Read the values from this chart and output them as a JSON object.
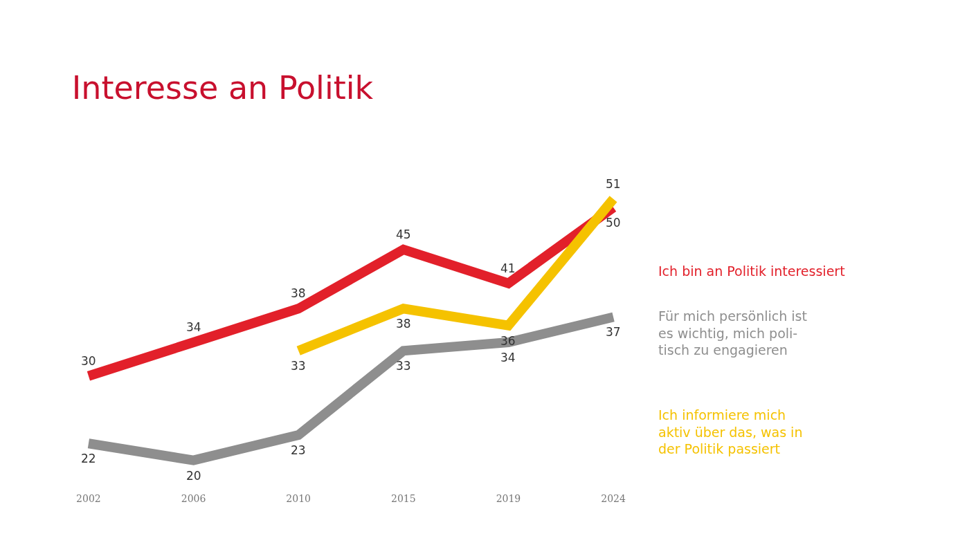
{
  "chart_data": {
    "type": "line",
    "title": "Interesse an Politik",
    "categories": [
      "2002",
      "2006",
      "2010",
      "2015",
      "2019",
      "2024"
    ],
    "series": [
      {
        "name": "Ich bin an Politik interessiert",
        "color": "#e2202a",
        "values": [
          30,
          34,
          38,
          45,
          41,
          50
        ]
      },
      {
        "name": "Für mich persönlich ist\nes wichtig, mich poli-\ntisch zu engagieren",
        "color": "#8e8e8e",
        "values": [
          22,
          20,
          23,
          33,
          34,
          37
        ]
      },
      {
        "name": "Ich informiere mich\naktiv über das, was in\nder Politik passiert",
        "color": "#f5c200",
        "values": [
          null,
          null,
          33,
          38,
          36,
          51
        ]
      }
    ],
    "data_labels": true,
    "legend": "right",
    "marker": "none",
    "line_style": "solid",
    "tick_labels": "x"
  }
}
